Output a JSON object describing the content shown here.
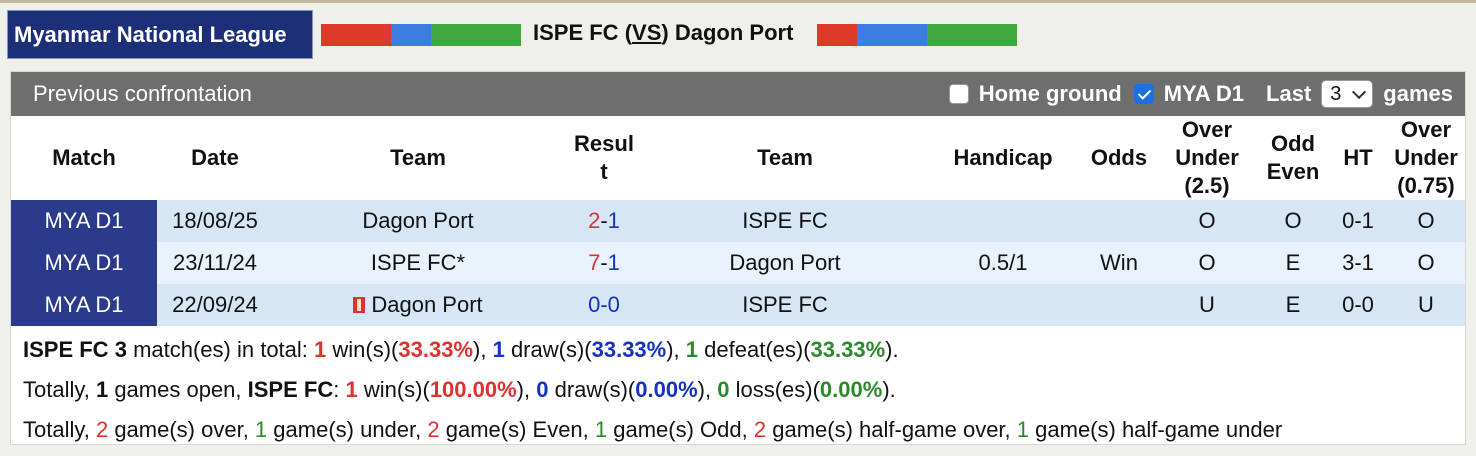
{
  "league": "Myanmar National League",
  "header": {
    "home_team": "ISPE FC",
    "vs_open": "(",
    "vs": "VS",
    "vs_close": ")",
    "away_team": "Dagon Port",
    "left_bar_colors": [
      "#dd3b2a",
      "#3b7de0",
      "#3fa83f"
    ],
    "right_bar_colors": [
      "#dd3b2a",
      "#3b7de0",
      "#3fa83f"
    ]
  },
  "panel": {
    "title": "Previous confrontation",
    "home_ground_label": "Home ground",
    "home_ground_checked": false,
    "league_filter_label": "MYA D1",
    "league_filter_checked": true,
    "last_label": "Last",
    "last_value": "3",
    "games_label": "games"
  },
  "columns": {
    "match": "Match",
    "date": "Date",
    "team1": "Team",
    "result_1": "Resul",
    "result_2": "t",
    "team2": "Team",
    "handicap": "Handicap",
    "odds": "Odds",
    "ou_1": "Over",
    "ou_2": "Under",
    "ou_3": "(2.5)",
    "oe_1": "Odd",
    "oe_2": "Even",
    "ht": "HT",
    "htou_1": "Over",
    "htou_2": "Under",
    "htou_3": "(0.75)"
  },
  "rows": [
    {
      "match": "MYA D1",
      "date": "18/08/25",
      "team1": "Dagon Port",
      "score_home": "2",
      "score_sep": "-",
      "score_away": "1",
      "team2": "ISPE FC",
      "handicap": "",
      "odds": "",
      "ou": "O",
      "oe": "O",
      "ht": "0-1",
      "htou": "O"
    },
    {
      "match": "MYA D1",
      "date": "23/11/24",
      "team1": "ISPE FC*",
      "score_home": "7",
      "score_sep": "-",
      "score_away": "1",
      "team2": "Dagon Port",
      "handicap": "0.5/1",
      "odds": "Win",
      "ou": "O",
      "oe": "E",
      "ht": "3-1",
      "htou": "O"
    },
    {
      "match": "MYA D1",
      "date": "22/09/24",
      "team1": "Dagon Port",
      "score_home": "0",
      "score_sep": "-",
      "score_away": "0",
      "team2": "ISPE FC",
      "handicap": "",
      "odds": "",
      "ou": "U",
      "oe": "E",
      "ht": "0-0",
      "htou": "U"
    }
  ],
  "summary": {
    "line1": {
      "team": "ISPE FC",
      "matches": "3",
      "t1": " match(es) in total: ",
      "wins": "1",
      "t2": " win(s)(",
      "win_pct": "33.33%",
      "t3": "), ",
      "draws": "1",
      "t4": " draw(s)(",
      "draw_pct": "33.33%",
      "t5": "), ",
      "defeats": "1",
      "t6": " defeat(es)(",
      "defeat_pct": "33.33%",
      "t7": ")."
    },
    "line2": {
      "t0": "Totally, ",
      "open": "1",
      "t1": " games open, ",
      "team": "ISPE FC",
      "t1b": ": ",
      "wins": "1",
      "t2": " win(s)(",
      "win_pct": "100.00%",
      "t3": "), ",
      "draws": "0",
      "t4": " draw(s)(",
      "draw_pct": "0.00%",
      "t5": "), ",
      "losses": "0",
      "t6": " loss(es)(",
      "loss_pct": "0.00%",
      "t7": ")."
    },
    "line3": {
      "t0": "Totally, ",
      "over": "2",
      "t1": " game(s) over, ",
      "under": "1",
      "t2": " game(s) under, ",
      "even": "2",
      "t3": " game(s) Even, ",
      "odd": "1",
      "t4": " game(s) Odd, ",
      "hg_over": "2",
      "t5": " game(s) half-game over, ",
      "hg_under": "1",
      "t6": " game(s) half-game under"
    }
  }
}
